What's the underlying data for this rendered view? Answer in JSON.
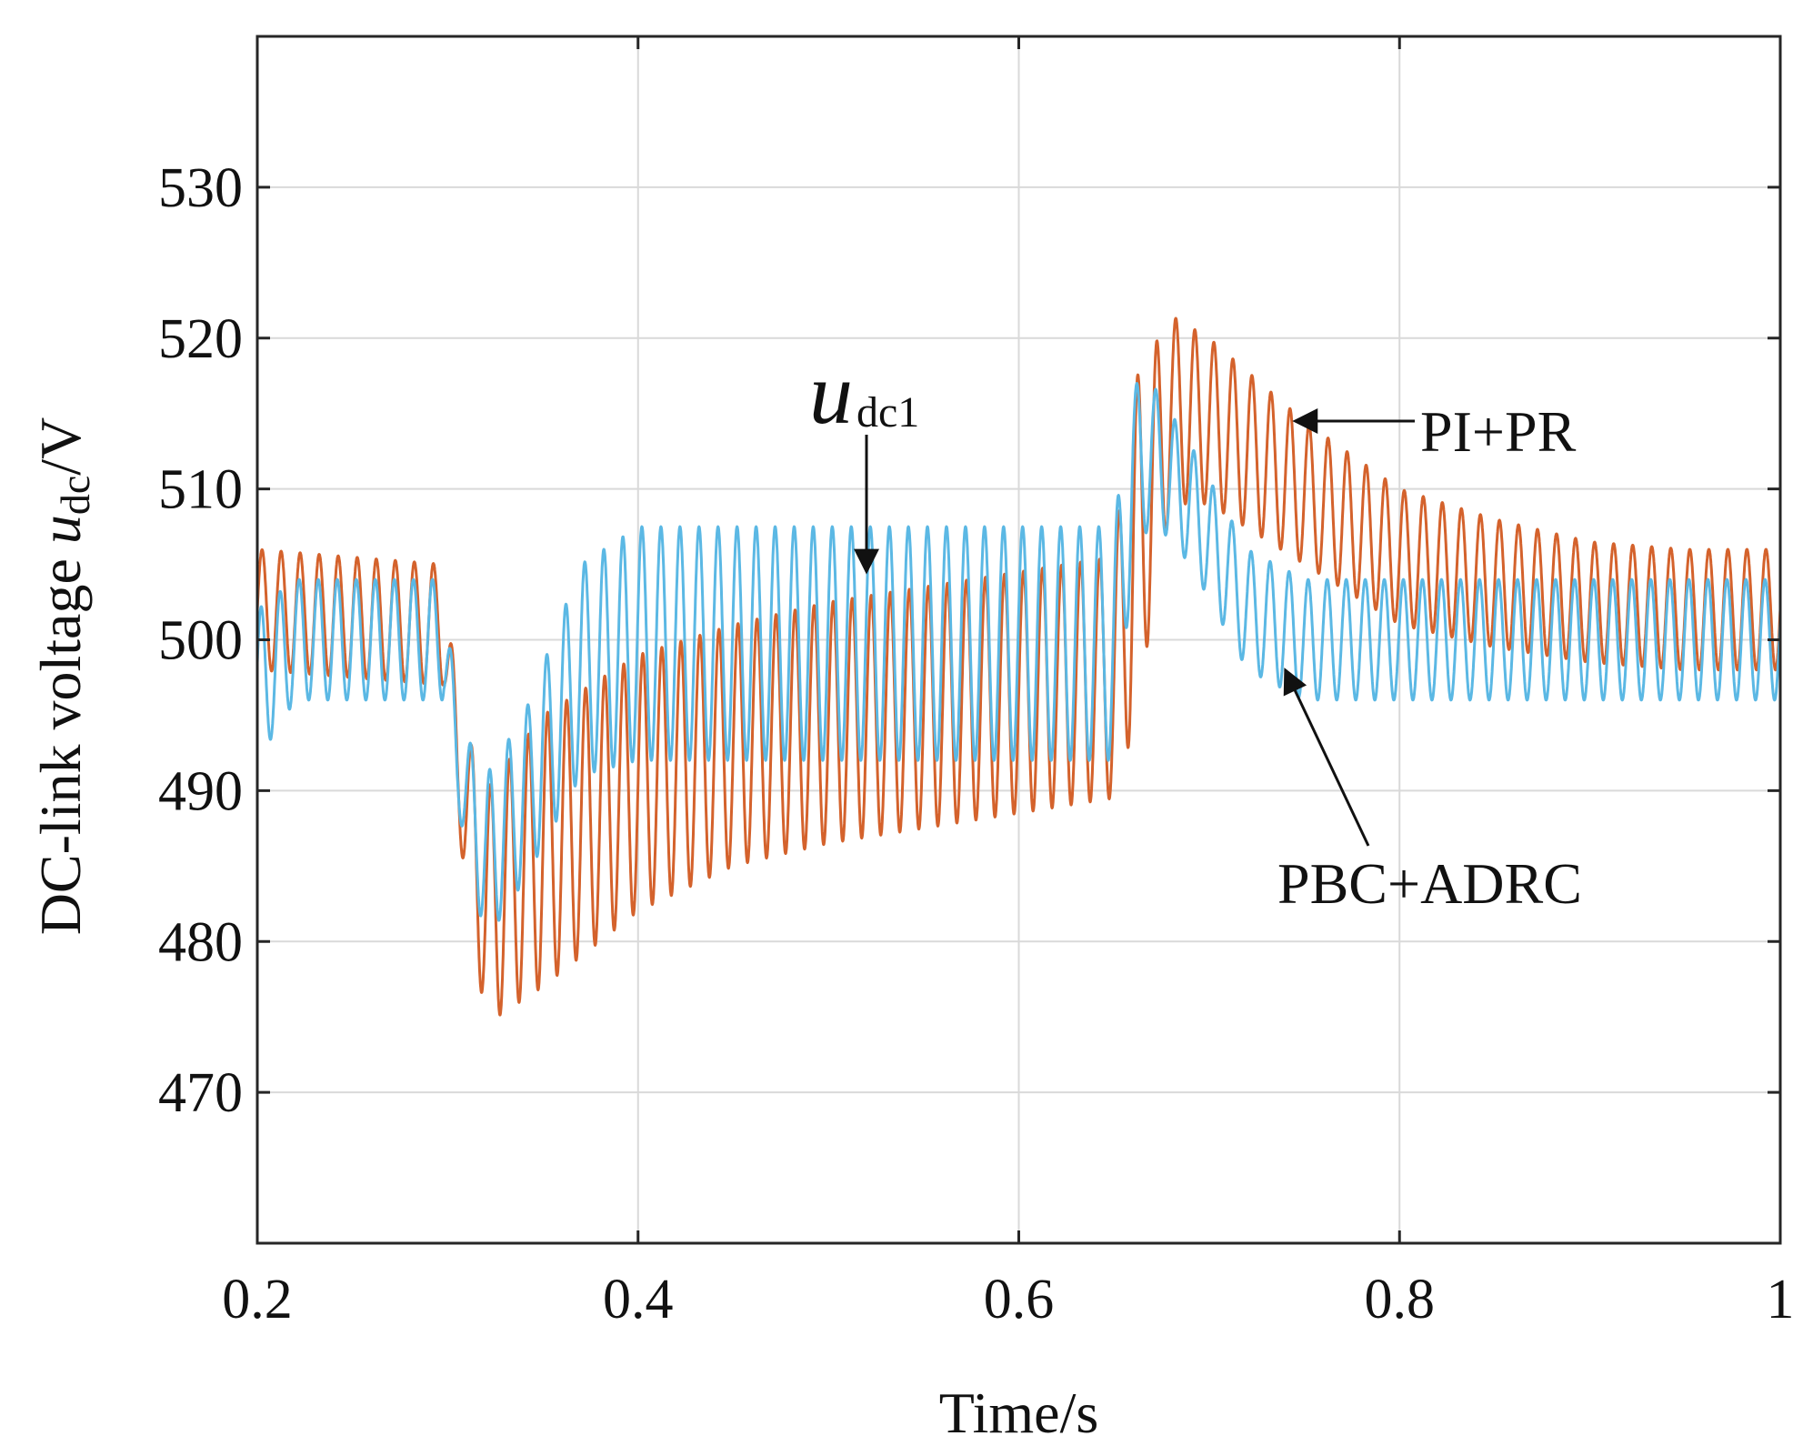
{
  "chart_data": {
    "type": "line",
    "title": "",
    "xlabel": "Time/s",
    "ylabel_main": "DC-link voltage ",
    "ylabel_var": "u",
    "ylabel_sub": "dc",
    "ylabel_unit": "/V",
    "xlim": [
      0.2,
      1.0
    ],
    "ylim": [
      460,
      540
    ],
    "xticks": [
      0.2,
      0.4,
      0.6,
      0.8,
      1.0
    ],
    "xtick_labels": [
      "0.2",
      "0.4",
      "0.6",
      "0.8",
      "1"
    ],
    "yticks": [
      470,
      480,
      490,
      500,
      510,
      520,
      530
    ],
    "ytick_labels": [
      "470",
      "480",
      "490",
      "500",
      "510",
      "520",
      "530"
    ],
    "grid": true,
    "ripple_frequency_hz": 100,
    "series": [
      {
        "name": "PI+PR",
        "color": "#d4622c",
        "envelope_upper": {
          "x": [
            0.2,
            0.298,
            0.305,
            0.32,
            0.35,
            0.4,
            0.45,
            0.5,
            0.55,
            0.6,
            0.65,
            0.66,
            0.68,
            0.7,
            0.75,
            0.8,
            0.85,
            0.9,
            0.95,
            1.0
          ],
          "y": [
            506,
            505,
            496,
            490,
            495,
            499,
            501,
            502.5,
            503.5,
            504.5,
            505.5,
            517,
            521.5,
            520,
            514.5,
            510,
            508,
            506.5,
            506,
            506
          ]
        },
        "envelope_lower": {
          "x": [
            0.2,
            0.298,
            0.305,
            0.32,
            0.35,
            0.4,
            0.45,
            0.5,
            0.55,
            0.6,
            0.65,
            0.66,
            0.68,
            0.7,
            0.75,
            0.8,
            0.85,
            0.9,
            0.95,
            1.0
          ],
          "y": [
            498,
            497,
            488,
            474.5,
            477,
            482,
            485,
            486.5,
            487.5,
            488.5,
            489.5,
            494,
            509,
            509,
            505,
            501,
            499.5,
            498.5,
            498,
            498
          ]
        }
      },
      {
        "name": "PBC+ADRC",
        "color": "#5bb8e4",
        "envelope_upper": {
          "x": [
            0.2,
            0.22,
            0.298,
            0.305,
            0.32,
            0.34,
            0.37,
            0.4,
            0.45,
            0.5,
            0.55,
            0.6,
            0.65,
            0.66,
            0.67,
            0.69,
            0.72,
            0.75,
            0.8,
            0.85,
            0.9,
            1.0
          ],
          "y": [
            502,
            504,
            504,
            495,
            491,
            495,
            505,
            507.5,
            507.5,
            507.5,
            507.5,
            507.5,
            507.5,
            517,
            517,
            513,
            506,
            504,
            504,
            504,
            504,
            504
          ]
        },
        "envelope_lower": {
          "x": [
            0.2,
            0.22,
            0.298,
            0.305,
            0.32,
            0.34,
            0.37,
            0.4,
            0.45,
            0.5,
            0.55,
            0.6,
            0.65,
            0.66,
            0.67,
            0.69,
            0.72,
            0.75,
            0.8,
            0.85,
            0.9,
            1.0
          ],
          "y": [
            492,
            496,
            496,
            489,
            480,
            484,
            491,
            492,
            492,
            492,
            492,
            492,
            492,
            505,
            508,
            505,
            498,
            496,
            496,
            496,
            496,
            496
          ]
        }
      }
    ],
    "annotations": [
      {
        "id": "udc1",
        "text_var": "u",
        "text_sub": "dc1",
        "arrow_to": {
          "x": 0.52,
          "y": 504.5
        }
      },
      {
        "id": "pi-pr",
        "text": "PI+PR",
        "arrow_to": {
          "x": 0.745,
          "y": 514.5
        }
      },
      {
        "id": "pbc-adrc",
        "text": "PBC+ADRC",
        "arrow_to": {
          "x": 0.74,
          "y": 498
        }
      }
    ]
  }
}
